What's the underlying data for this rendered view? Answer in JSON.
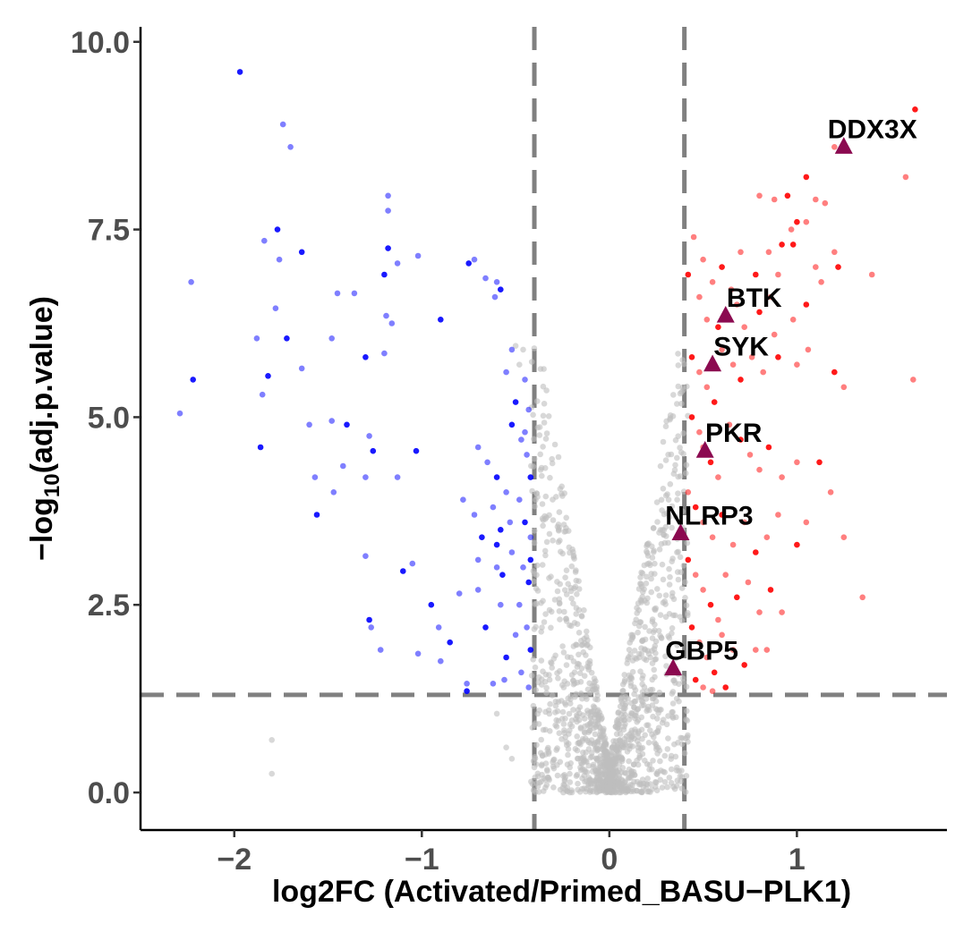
{
  "chart_data": {
    "type": "scatter",
    "subtype": "volcano",
    "xlabel": "log2FC (Activated/Primed_BASU−PLK1)",
    "ylabel_parts": [
      "−log",
      "10",
      "(adj.p.value)"
    ],
    "xlim": [
      -2.5,
      1.8
    ],
    "ylim": [
      -0.5,
      10.2
    ],
    "x_ticks": [
      -2,
      -1,
      0,
      1
    ],
    "x_tick_labels": [
      "−2",
      "−1",
      "0",
      "1"
    ],
    "y_ticks": [
      0,
      2.5,
      5,
      7.5,
      10
    ],
    "y_tick_labels": [
      "0.0",
      "2.5",
      "5.0",
      "7.5",
      "10.0"
    ],
    "thresholds": {
      "log2fc": [
        -0.4,
        0.4
      ],
      "neg_log10_p": 1.3
    },
    "grid": false,
    "colors": {
      "down": "#0000ff",
      "up": "#ff0000",
      "ns": "#bebebe",
      "highlight": "#8b0a50",
      "threshold_line": "#808080"
    },
    "series": [
      {
        "group": "down",
        "points": [
          [
            -1.97,
            9.6
          ],
          [
            -1.74,
            8.9
          ],
          [
            -1.7,
            8.6
          ],
          [
            -1.77,
            7.5
          ],
          [
            -1.84,
            7.35
          ],
          [
            -1.76,
            7.1
          ],
          [
            -1.64,
            7.2
          ],
          [
            -1.18,
            7.95
          ],
          [
            -1.18,
            7.75
          ],
          [
            -1.18,
            7.25
          ],
          [
            -1.13,
            7.05
          ],
          [
            -1.02,
            7.15
          ],
          [
            -0.75,
            7.05
          ],
          [
            -0.72,
            7.1
          ],
          [
            -2.23,
            6.8
          ],
          [
            -2.22,
            5.5
          ],
          [
            -2.29,
            5.05
          ],
          [
            -1.78,
            6.45
          ],
          [
            -1.72,
            6.05
          ],
          [
            -1.45,
            6.65
          ],
          [
            -1.36,
            6.65
          ],
          [
            -1.2,
            6.9
          ],
          [
            -1.19,
            6.35
          ],
          [
            -1.16,
            6.25
          ],
          [
            -0.9,
            6.3
          ],
          [
            -0.66,
            6.85
          ],
          [
            -0.6,
            6.8
          ],
          [
            -0.58,
            6.7
          ],
          [
            -0.61,
            6.6
          ],
          [
            -1.88,
            6.05
          ],
          [
            -1.82,
            5.55
          ],
          [
            -1.64,
            5.65
          ],
          [
            -1.48,
            6.05
          ],
          [
            -1.3,
            5.8
          ],
          [
            -1.2,
            5.85
          ],
          [
            -1.85,
            5.3
          ],
          [
            -1.86,
            4.6
          ],
          [
            -1.6,
            4.9
          ],
          [
            -1.48,
            4.95
          ],
          [
            -1.4,
            4.9
          ],
          [
            -1.42,
            4.35
          ],
          [
            -1.28,
            4.75
          ],
          [
            -1.26,
            4.55
          ],
          [
            -1.3,
            4.2
          ],
          [
            -1.13,
            4.2
          ],
          [
            -1.03,
            4.55
          ],
          [
            -1.57,
            4.2
          ],
          [
            -1.47,
            4.0
          ],
          [
            -1.56,
            3.7
          ],
          [
            -1.3,
            3.15
          ],
          [
            -1.05,
            3.05
          ],
          [
            -1.28,
            2.3
          ],
          [
            -1.27,
            2.2
          ],
          [
            -1.22,
            1.9
          ],
          [
            -1.1,
            2.95
          ],
          [
            -1.02,
            1.85
          ],
          [
            -0.9,
            1.75
          ],
          [
            -0.95,
            2.5
          ],
          [
            -0.91,
            2.2
          ],
          [
            -0.76,
            1.45
          ],
          [
            -0.76,
            1.35
          ],
          [
            -0.62,
            1.45
          ],
          [
            -0.8,
            2.65
          ],
          [
            -0.85,
            2.0
          ],
          [
            -0.7,
            3.1
          ],
          [
            -0.7,
            2.7
          ],
          [
            -0.66,
            2.2
          ],
          [
            -0.6,
            3.0
          ],
          [
            -0.58,
            2.5
          ],
          [
            -0.55,
            1.8
          ],
          [
            -0.52,
            5.9
          ],
          [
            -0.55,
            5.6
          ],
          [
            -0.5,
            5.2
          ],
          [
            -0.45,
            5.5
          ],
          [
            -0.43,
            5.1
          ],
          [
            -0.52,
            4.9
          ],
          [
            -0.47,
            4.7
          ],
          [
            -0.44,
            4.5
          ],
          [
            -0.42,
            4.2
          ],
          [
            -0.7,
            4.6
          ],
          [
            -0.65,
            4.4
          ],
          [
            -0.6,
            4.2
          ],
          [
            -0.55,
            4.0
          ],
          [
            -0.48,
            3.9
          ],
          [
            -0.45,
            3.6
          ],
          [
            -0.42,
            3.4
          ],
          [
            -0.62,
            3.8
          ],
          [
            -0.58,
            3.5
          ],
          [
            -0.52,
            3.2
          ],
          [
            -0.46,
            3.0
          ],
          [
            -0.43,
            2.8
          ],
          [
            -0.48,
            2.5
          ],
          [
            -0.44,
            2.2
          ],
          [
            -0.42,
            1.9
          ],
          [
            -0.47,
            1.6
          ],
          [
            -0.43,
            1.4
          ],
          [
            -0.57,
            2.9
          ],
          [
            -0.5,
            2.1
          ],
          [
            -0.56,
            1.5
          ],
          [
            -0.68,
            3.4
          ],
          [
            -0.72,
            3.7
          ],
          [
            -0.78,
            3.9
          ],
          [
            -0.6,
            3.3
          ],
          [
            -0.53,
            3.6
          ],
          [
            -0.45,
            4.8
          ],
          [
            -0.42,
            3.1
          ]
        ]
      },
      {
        "group": "up",
        "points": [
          [
            1.63,
            9.1
          ],
          [
            1.58,
            8.2
          ],
          [
            1.2,
            8.6
          ],
          [
            1.05,
            8.2
          ],
          [
            1.1,
            7.9
          ],
          [
            1.15,
            7.85
          ],
          [
            0.95,
            7.95
          ],
          [
            0.88,
            7.9
          ],
          [
            0.8,
            7.95
          ],
          [
            1.0,
            7.6
          ],
          [
            1.05,
            7.6
          ],
          [
            0.97,
            7.5
          ],
          [
            0.92,
            7.3
          ],
          [
            0.85,
            7.2
          ],
          [
            0.7,
            7.2
          ],
          [
            0.6,
            7.0
          ],
          [
            0.55,
            6.8
          ],
          [
            0.65,
            6.7
          ],
          [
            0.78,
            6.9
          ],
          [
            0.86,
            6.6
          ],
          [
            0.9,
            6.9
          ],
          [
            0.98,
            7.3
          ],
          [
            1.1,
            7.0
          ],
          [
            1.2,
            7.2
          ],
          [
            1.22,
            7.0
          ],
          [
            0.45,
            7.4
          ],
          [
            0.5,
            7.1
          ],
          [
            0.42,
            6.9
          ],
          [
            0.48,
            6.6
          ],
          [
            0.52,
            6.3
          ],
          [
            0.58,
            6.2
          ],
          [
            0.68,
            6.5
          ],
          [
            0.72,
            6.2
          ],
          [
            0.8,
            6.4
          ],
          [
            0.88,
            6.1
          ],
          [
            0.98,
            6.3
          ],
          [
            1.05,
            6.5
          ],
          [
            1.13,
            6.8
          ],
          [
            1.4,
            6.9
          ],
          [
            0.44,
            5.8
          ],
          [
            0.48,
            5.6
          ],
          [
            0.52,
            5.4
          ],
          [
            0.56,
            5.2
          ],
          [
            0.6,
            5.9
          ],
          [
            0.66,
            5.7
          ],
          [
            0.7,
            5.5
          ],
          [
            0.76,
            5.8
          ],
          [
            0.82,
            5.6
          ],
          [
            0.9,
            5.8
          ],
          [
            1.0,
            5.7
          ],
          [
            1.06,
            5.9
          ],
          [
            1.2,
            5.6
          ],
          [
            1.25,
            5.4
          ],
          [
            1.62,
            5.5
          ],
          [
            0.44,
            5.0
          ],
          [
            0.48,
            4.8
          ],
          [
            0.5,
            4.6
          ],
          [
            0.54,
            4.4
          ],
          [
            0.58,
            4.2
          ],
          [
            0.64,
            4.9
          ],
          [
            0.7,
            4.7
          ],
          [
            0.75,
            4.5
          ],
          [
            0.8,
            4.3
          ],
          [
            0.85,
            4.6
          ],
          [
            0.92,
            4.2
          ],
          [
            1.0,
            4.4
          ],
          [
            1.12,
            4.4
          ],
          [
            1.18,
            4.0
          ],
          [
            0.42,
            4.0
          ],
          [
            0.46,
            3.8
          ],
          [
            0.5,
            3.6
          ],
          [
            0.55,
            3.4
          ],
          [
            0.6,
            3.7
          ],
          [
            0.66,
            3.3
          ],
          [
            0.72,
            3.6
          ],
          [
            0.78,
            3.2
          ],
          [
            0.84,
            3.4
          ],
          [
            0.9,
            3.7
          ],
          [
            1.0,
            3.3
          ],
          [
            1.05,
            3.6
          ],
          [
            1.25,
            3.4
          ],
          [
            0.42,
            3.1
          ],
          [
            0.46,
            2.9
          ],
          [
            0.5,
            2.7
          ],
          [
            0.54,
            2.5
          ],
          [
            0.58,
            2.3
          ],
          [
            0.62,
            2.9
          ],
          [
            0.68,
            2.6
          ],
          [
            0.74,
            2.8
          ],
          [
            0.8,
            2.4
          ],
          [
            0.86,
            2.7
          ],
          [
            0.92,
            2.4
          ],
          [
            1.35,
            2.6
          ],
          [
            0.44,
            2.2
          ],
          [
            0.48,
            2.0
          ],
          [
            0.52,
            1.8
          ],
          [
            0.56,
            1.6
          ],
          [
            0.6,
            2.1
          ],
          [
            0.66,
            1.9
          ],
          [
            0.72,
            1.7
          ],
          [
            0.78,
            1.9
          ],
          [
            0.84,
            1.9
          ],
          [
            0.46,
            1.5
          ],
          [
            0.5,
            1.4
          ],
          [
            0.55,
            1.35
          ],
          [
            0.62,
            1.4
          ]
        ]
      },
      {
        "group": "highlight",
        "points": [
          {
            "label": "DDX3X",
            "x": 1.25,
            "y": 8.6
          },
          {
            "label": "BTK",
            "x": 0.62,
            "y": 6.35
          },
          {
            "label": "SYK",
            "x": 0.55,
            "y": 5.7
          },
          {
            "label": "PKR",
            "x": 0.51,
            "y": 4.55
          },
          {
            "label": "NLRP3",
            "x": 0.38,
            "y": 3.45
          },
          {
            "label": "GBP5",
            "x": 0.34,
            "y": 1.65
          }
        ]
      }
    ],
    "ns_series": {
      "group": "ns",
      "extra_points": [
        [
          -1.8,
          0.7
        ],
        [
          -1.8,
          0.25
        ],
        [
          -0.55,
          0.6
        ],
        [
          -0.52,
          0.45
        ],
        [
          -0.6,
          1.05
        ],
        [
          -0.5,
          5.95
        ],
        [
          -0.48,
          5.7
        ],
        [
          -0.46,
          5.9
        ]
      ]
    }
  }
}
